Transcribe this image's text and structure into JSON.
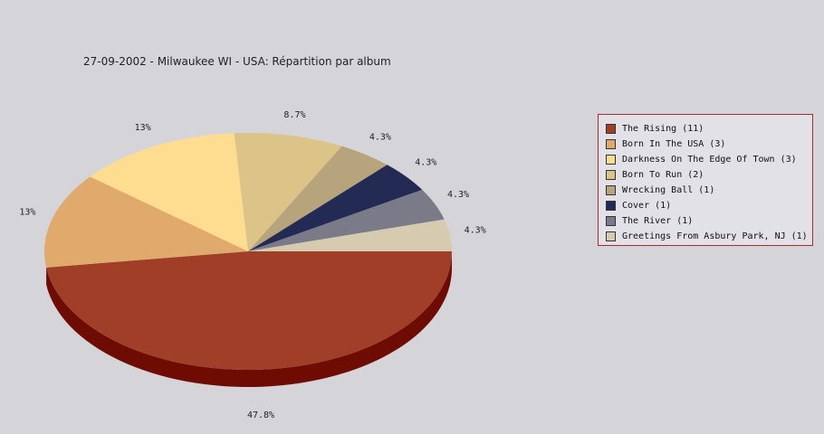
{
  "chart_data": {
    "type": "pie",
    "title": "27-09-2002 - Milwaukee WI - USA:  Répartition par album",
    "slices": [
      {
        "label": "The Rising (11)",
        "value": 11,
        "percent": "47.8%",
        "color": "#a13e28",
        "side_color": "#6e0c04"
      },
      {
        "label": "Born In The USA (3)",
        "value": 3,
        "percent": "13%",
        "color": "#e0aa6c",
        "side_color": "#9a6a38"
      },
      {
        "label": "Darkness On The Edge Of Town (3)",
        "value": 3,
        "percent": "13%",
        "color": "#fedd90",
        "side_color": "#b89a50"
      },
      {
        "label": "Born To Run (2)",
        "value": 2,
        "percent": "8.7%",
        "color": "#dcc388",
        "side_color": "#9a8450"
      },
      {
        "label": "Wrecking Ball (1)",
        "value": 1,
        "percent": "4.3%",
        "color": "#b8a47c",
        "side_color": "#7a6a48"
      },
      {
        "label": "Cover (1)",
        "value": 1,
        "percent": "4.3%",
        "color": "#232a54",
        "side_color": "#101530"
      },
      {
        "label": "The River (1)",
        "value": 1,
        "percent": "4.3%",
        "color": "#7b7a88",
        "side_color": "#4a4a58"
      },
      {
        "label": "Greetings From Asbury Park, NJ (1)",
        "value": 1,
        "percent": "4.3%",
        "color": "#d6cbb1",
        "side_color": "#9a907a"
      }
    ],
    "legend_position": "right"
  }
}
